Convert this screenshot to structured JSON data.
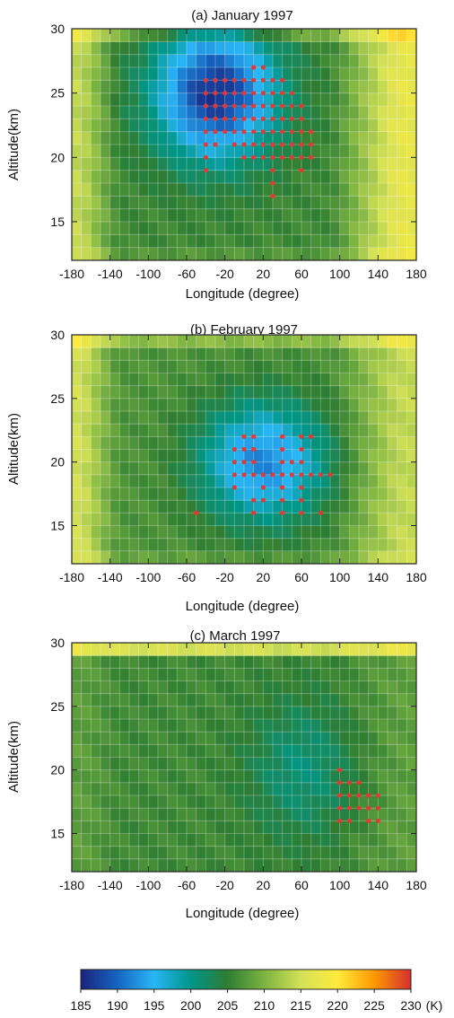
{
  "chart_data": [
    {
      "type": "heatmap",
      "title": "(a) January 1997",
      "xlabel": "Longitude (degree)",
      "ylabel": "Altitude(km)",
      "xlim": [
        -180,
        180
      ],
      "ylim": [
        12,
        30
      ],
      "xticks": [
        "-180",
        "-140",
        "-100",
        "-60",
        "-20",
        "20",
        "60",
        "100",
        "140",
        "180"
      ],
      "yticks": [
        "15",
        "20",
        "25",
        "30"
      ],
      "grid": true,
      "vortex": {
        "center_lon": -30,
        "center_alt": 25,
        "lon_radius": 80,
        "alt_radius": 6.5,
        "min_temp": 186
      },
      "background": {
        "base_temp": 206,
        "east_temp": 217,
        "west_temp": 214
      },
      "markers": [
        [
          -40,
          26
        ],
        [
          -40,
          25
        ],
        [
          -40,
          24
        ],
        [
          -40,
          23
        ],
        [
          -40,
          22
        ],
        [
          -40,
          21
        ],
        [
          -40,
          20
        ],
        [
          -40,
          19
        ],
        [
          -30,
          26
        ],
        [
          -30,
          25
        ],
        [
          -30,
          24
        ],
        [
          -30,
          23
        ],
        [
          -30,
          22
        ],
        [
          -30,
          21
        ],
        [
          -20,
          26
        ],
        [
          -20,
          25
        ],
        [
          -20,
          24
        ],
        [
          -20,
          23
        ],
        [
          -20,
          22
        ],
        [
          -10,
          26
        ],
        [
          -10,
          25
        ],
        [
          -10,
          24
        ],
        [
          -10,
          23
        ],
        [
          -10,
          22
        ],
        [
          -10,
          21
        ],
        [
          0,
          26
        ],
        [
          0,
          25
        ],
        [
          0,
          24
        ],
        [
          0,
          23
        ],
        [
          0,
          22
        ],
        [
          0,
          21
        ],
        [
          0,
          20
        ],
        [
          10,
          27
        ],
        [
          10,
          26
        ],
        [
          10,
          25
        ],
        [
          10,
          24
        ],
        [
          10,
          23
        ],
        [
          10,
          22
        ],
        [
          10,
          21
        ],
        [
          10,
          20
        ],
        [
          20,
          27
        ],
        [
          20,
          26
        ],
        [
          20,
          25
        ],
        [
          20,
          24
        ],
        [
          20,
          23
        ],
        [
          20,
          22
        ],
        [
          20,
          21
        ],
        [
          20,
          20
        ],
        [
          30,
          26
        ],
        [
          30,
          25
        ],
        [
          30,
          24
        ],
        [
          30,
          23
        ],
        [
          30,
          22
        ],
        [
          30,
          21
        ],
        [
          30,
          20
        ],
        [
          30,
          19
        ],
        [
          30,
          18
        ],
        [
          30,
          17
        ],
        [
          40,
          26
        ],
        [
          40,
          25
        ],
        [
          40,
          24
        ],
        [
          40,
          23
        ],
        [
          40,
          22
        ],
        [
          40,
          21
        ],
        [
          40,
          20
        ],
        [
          50,
          25
        ],
        [
          50,
          24
        ],
        [
          50,
          23
        ],
        [
          50,
          22
        ],
        [
          50,
          21
        ],
        [
          50,
          20
        ],
        [
          60,
          24
        ],
        [
          60,
          23
        ],
        [
          60,
          22
        ],
        [
          60,
          21
        ],
        [
          60,
          20
        ],
        [
          60,
          19
        ],
        [
          70,
          22
        ],
        [
          70,
          21
        ],
        [
          70,
          20
        ]
      ]
    },
    {
      "type": "heatmap",
      "title": "(b) February 1997",
      "xlabel": "Longitude (degree)",
      "ylabel": "Altitude(km)",
      "xlim": [
        -180,
        180
      ],
      "ylim": [
        12,
        30
      ],
      "xticks": [
        "-180",
        "-140",
        "-100",
        "-60",
        "-20",
        "20",
        "60",
        "100",
        "140",
        "180"
      ],
      "yticks": [
        "15",
        "20",
        "25",
        "30"
      ],
      "grid": true,
      "vortex": {
        "center_lon": 20,
        "center_alt": 20,
        "lon_radius": 85,
        "alt_radius": 6,
        "min_temp": 192
      },
      "background": {
        "base_temp": 207,
        "east_temp": 214,
        "west_temp": 215
      },
      "markers": [
        [
          -50,
          16
        ],
        [
          -10,
          21
        ],
        [
          -10,
          20
        ],
        [
          -10,
          19
        ],
        [
          -10,
          18
        ],
        [
          0,
          22
        ],
        [
          0,
          21
        ],
        [
          0,
          20
        ],
        [
          0,
          19
        ],
        [
          10,
          22
        ],
        [
          10,
          21
        ],
        [
          10,
          20
        ],
        [
          10,
          19
        ],
        [
          10,
          17
        ],
        [
          10,
          16
        ],
        [
          20,
          19
        ],
        [
          20,
          18
        ],
        [
          20,
          17
        ],
        [
          30,
          19
        ],
        [
          40,
          22
        ],
        [
          40,
          21
        ],
        [
          40,
          20
        ],
        [
          40,
          19
        ],
        [
          40,
          18
        ],
        [
          40,
          17
        ],
        [
          40,
          16
        ],
        [
          50,
          20
        ],
        [
          50,
          19
        ],
        [
          60,
          22
        ],
        [
          60,
          21
        ],
        [
          60,
          20
        ],
        [
          60,
          19
        ],
        [
          60,
          18
        ],
        [
          60,
          17
        ],
        [
          60,
          16
        ],
        [
          70,
          22
        ],
        [
          70,
          19
        ],
        [
          80,
          19
        ],
        [
          80,
          16
        ],
        [
          90,
          19
        ]
      ]
    },
    {
      "type": "heatmap",
      "title": "(c) March 1997",
      "xlabel": "Longitude (degree)",
      "ylabel": "Altitude(km)",
      "xlim": [
        -180,
        180
      ],
      "ylim": [
        12,
        30
      ],
      "xticks": [
        "-180",
        "-140",
        "-100",
        "-60",
        "-20",
        "20",
        "60",
        "100",
        "140",
        "180"
      ],
      "yticks": [
        "15",
        "20",
        "25",
        "30"
      ],
      "grid": true,
      "vortex": {
        "center_lon": 60,
        "center_alt": 20,
        "lon_radius": 70,
        "alt_radius": 7,
        "min_temp": 201
      },
      "background": {
        "base_temp": 206,
        "east_temp": 208,
        "west_temp": 208
      },
      "markers": [
        [
          100,
          20
        ],
        [
          100,
          19
        ],
        [
          100,
          18
        ],
        [
          100,
          17
        ],
        [
          100,
          16
        ],
        [
          110,
          19
        ],
        [
          110,
          18
        ],
        [
          110,
          17
        ],
        [
          110,
          16
        ],
        [
          120,
          19
        ],
        [
          120,
          18
        ],
        [
          120,
          17
        ],
        [
          130,
          18
        ],
        [
          130,
          17
        ],
        [
          130,
          16
        ],
        [
          140,
          18
        ],
        [
          140,
          17
        ],
        [
          140,
          16
        ]
      ]
    }
  ],
  "colorbar": {
    "min": 185,
    "max": 230,
    "ticks": [
      "185",
      "190",
      "195",
      "200",
      "205",
      "210",
      "215",
      "220",
      "225",
      "230"
    ],
    "unit": "(K)",
    "colors": [
      "#1a237e",
      "#1565c0",
      "#29b6f6",
      "#009688",
      "#2e7d32",
      "#7cb342",
      "#d4e157",
      "#ffeb3b",
      "#ff9800",
      "#d32f2f"
    ]
  },
  "marker_color": "#e53935"
}
